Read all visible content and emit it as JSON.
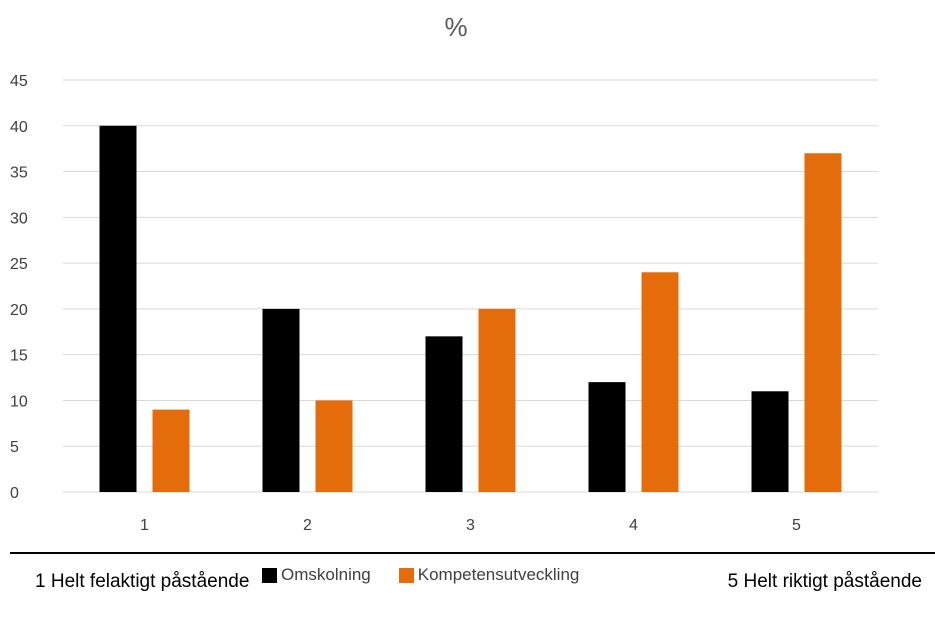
{
  "chart_data": {
    "type": "bar",
    "title": "%",
    "categories": [
      "1",
      "2",
      "3",
      "4",
      "5"
    ],
    "series": [
      {
        "name": "Omskolning",
        "color": "#000000",
        "values": [
          40,
          20,
          17,
          12,
          11
        ]
      },
      {
        "name": "Kompetensutveckling",
        "color": "#E46C0A",
        "values": [
          9,
          10,
          20,
          24,
          37
        ]
      }
    ],
    "ylim": [
      0,
      45
    ],
    "yticks": [
      0,
      5,
      10,
      15,
      20,
      25,
      30,
      35,
      40,
      45
    ],
    "grid": true,
    "legend_position": "bottom"
  },
  "scale_labels": {
    "left": "1 Helt felaktigt påstående",
    "right": "5 Helt riktigt påstående"
  },
  "gridline_color": "#D9D9D9"
}
